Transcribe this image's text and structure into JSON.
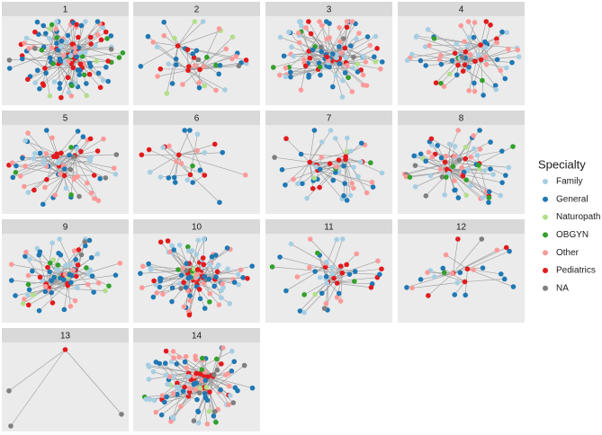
{
  "panels": [
    {
      "label": "1"
    },
    {
      "label": "2"
    },
    {
      "label": "3"
    },
    {
      "label": "4"
    },
    {
      "label": "5"
    },
    {
      "label": "6"
    },
    {
      "label": "7"
    },
    {
      "label": "8"
    },
    {
      "label": "9"
    },
    {
      "label": "10"
    },
    {
      "label": "11"
    },
    {
      "label": "12"
    },
    {
      "label": "13"
    },
    {
      "label": "14"
    }
  ],
  "legend": {
    "title": "Specialty",
    "items": [
      {
        "name": "Family",
        "color": "#a6cee3"
      },
      {
        "name": "General",
        "color": "#1f78b4"
      },
      {
        "name": "Naturopath",
        "color": "#b2df8a"
      },
      {
        "name": "OBGYN",
        "color": "#33a02c"
      },
      {
        "name": "Other",
        "color": "#fb9a99"
      },
      {
        "name": "Pediatrics",
        "color": "#e31a1c"
      },
      {
        "name": "NA",
        "color": "#7f7f7f"
      }
    ]
  }
}
